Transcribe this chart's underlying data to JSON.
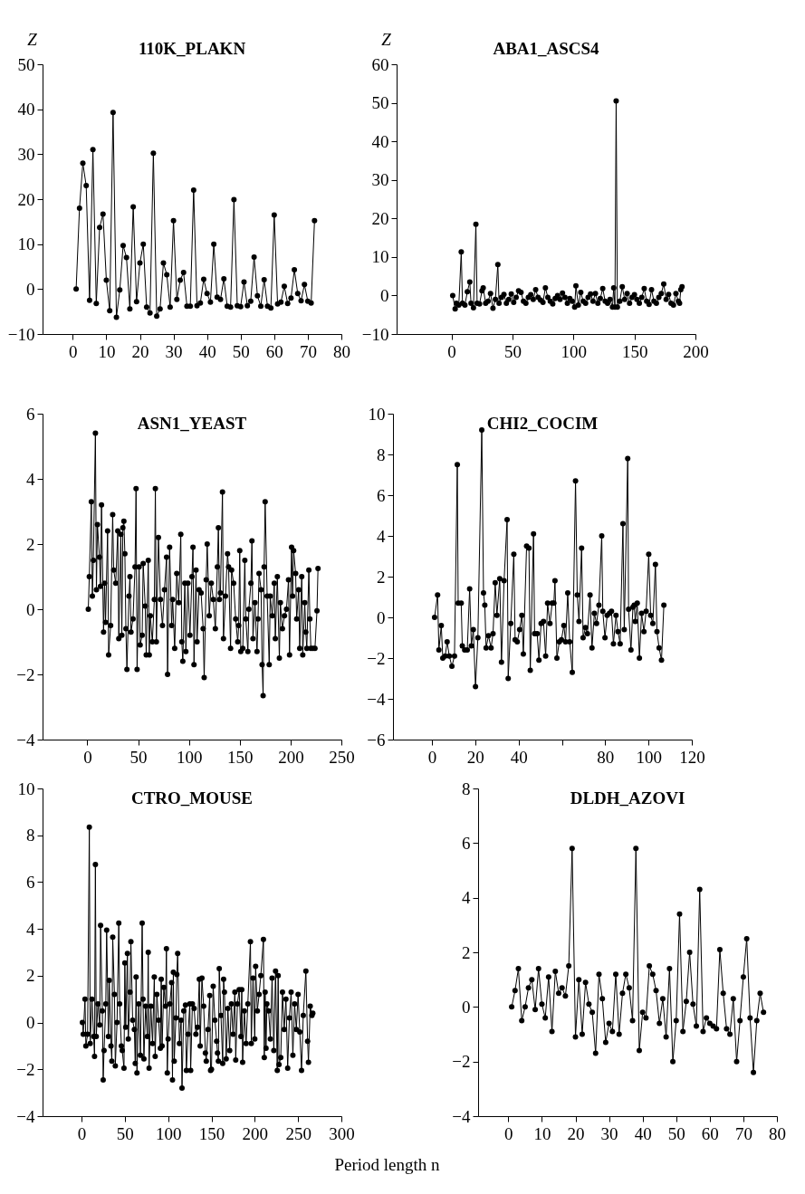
{
  "chart_data": [
    {
      "type": "line",
      "title": "110K_PLAKN",
      "ylabel": "Z",
      "marker": "circle",
      "xlim": [
        -9,
        80
      ],
      "ylim": [
        -10,
        50
      ],
      "xticks": [
        0,
        10,
        20,
        30,
        40,
        50,
        60,
        70,
        80
      ],
      "yticks": [
        -10,
        0,
        10,
        20,
        30,
        40,
        50
      ],
      "x": [
        1,
        2,
        3,
        4,
        5,
        6,
        7,
        8,
        9,
        10,
        11,
        12,
        13,
        14,
        15,
        16,
        17,
        18,
        19,
        20,
        21,
        22,
        23,
        24,
        25,
        26,
        27,
        28,
        29,
        30,
        31,
        32,
        33,
        34,
        35,
        36,
        37,
        38,
        39,
        40,
        41,
        42,
        43,
        44,
        45,
        46,
        47,
        48,
        49,
        50,
        51,
        52,
        53,
        54,
        55,
        56,
        57,
        58,
        59,
        60,
        61,
        62,
        63,
        64,
        65,
        66,
        67,
        68,
        69,
        70,
        71,
        72
      ],
      "series": [
        {
          "color": "#000000",
          "values": [
            0,
            18,
            28,
            23,
            -2.5,
            31,
            -3.2,
            13.7,
            16.7,
            2,
            -4.8,
            39.3,
            -6.3,
            -0.2,
            9.7,
            7,
            -4.4,
            18.3,
            -2.8,
            5.8,
            10,
            -4,
            -5.3,
            30.2,
            -6,
            -4.4,
            5.8,
            3.2,
            -4,
            15.2,
            -2.3,
            2,
            3.7,
            -3.8,
            -3.8,
            22,
            -3.7,
            -3.1,
            2.2,
            -1,
            -2.9,
            10,
            -1.8,
            -2.3,
            2.3,
            -3.8,
            -4,
            19.9,
            -3.7,
            -3.9,
            1.6,
            -3.7,
            -2.7,
            7.1,
            -1.5,
            -3.8,
            2.1,
            -3.8,
            -4.2,
            16.5,
            -3.3,
            -2.9,
            0.6,
            -3.2,
            -2,
            4.3,
            -1,
            -2.6,
            1,
            -2.7,
            -3.1,
            15.2
          ]
        }
      ]
    },
    {
      "type": "line",
      "title": "ABA1_ASCS4",
      "ylabel": "Z",
      "marker": "circle",
      "xlim": [
        -45,
        200
      ],
      "ylim": [
        -10,
        60
      ],
      "xticks": [
        0,
        50,
        100,
        150,
        200
      ],
      "yticks": [
        -10,
        0,
        10,
        20,
        30,
        40,
        50,
        60
      ],
      "x": [
        1,
        3,
        4,
        6,
        8,
        9,
        11,
        13,
        15,
        16,
        18,
        20,
        21,
        23,
        25,
        26,
        28,
        30,
        32,
        34,
        36,
        38,
        39,
        41,
        43,
        45,
        47,
        49,
        51,
        53,
        55,
        57,
        59,
        61,
        63,
        65,
        67,
        69,
        71,
        73,
        75,
        77,
        79,
        81,
        83,
        85,
        87,
        89,
        91,
        93,
        95,
        97,
        99,
        101,
        102,
        104,
        106,
        108,
        110,
        112,
        114,
        116,
        118,
        120,
        122,
        124,
        126,
        128,
        130,
        132,
        133,
        134,
        135,
        136,
        138,
        140,
        142,
        144,
        146,
        148,
        150,
        152,
        154,
        156,
        158,
        160,
        162,
        164,
        166,
        168,
        170,
        172,
        174,
        176,
        178,
        180,
        182,
        184,
        186,
        187,
        188,
        189
      ],
      "series": [
        {
          "color": "#000000",
          "values": [
            0,
            -3.5,
            -2,
            -2.5,
            11.3,
            -2,
            -2.5,
            1,
            3.5,
            -2,
            -3.2,
            18.5,
            -2,
            -2.2,
            1.2,
            2,
            -2,
            -1.5,
            0.5,
            -3.3,
            -1,
            8,
            -2,
            -0.5,
            0.3,
            -2,
            -1,
            0.4,
            -1.8,
            -0.5,
            1.2,
            0.8,
            -1.5,
            -2,
            -0.5,
            0.2,
            -1,
            1.5,
            -0.5,
            -1.2,
            -1.8,
            2,
            -0.5,
            -1.5,
            -2.2,
            -0.8,
            0,
            -1,
            0.6,
            -0.5,
            -2,
            -0.8,
            -1.5,
            -3,
            2.5,
            -2.5,
            0.8,
            -1.5,
            -2,
            -0.5,
            0.4,
            -1.5,
            0.5,
            -2,
            -0.8,
            1.8,
            -1.5,
            -2,
            -1,
            -3,
            2,
            -3,
            50.5,
            -3,
            -1.5,
            2.3,
            -1,
            0.5,
            -2,
            -0.5,
            0.2,
            -1,
            -2,
            -0.5,
            1.8,
            -1.5,
            -2.3,
            1.5,
            -1.5,
            -2,
            -0.5,
            0.5,
            3,
            -1,
            0.3,
            -2,
            -2.5,
            0.5,
            -1.5,
            -2,
            1.5,
            2.3
          ]
        }
      ]
    },
    {
      "type": "line",
      "title": "ASN1_YEAST",
      "marker": "circle",
      "xlim": [
        -44,
        250
      ],
      "ylim": [
        -4,
        6
      ],
      "xticks": [
        0,
        50,
        100,
        150,
        200,
        250
      ],
      "yticks": [
        -4,
        -2,
        0,
        2,
        4,
        6
      ],
      "x": [
        1,
        2,
        4,
        5,
        6,
        8,
        9,
        10,
        12,
        13,
        14,
        16,
        17,
        18,
        20,
        21,
        23,
        25,
        26,
        28,
        30,
        31,
        33,
        34,
        35,
        36,
        37,
        38,
        39,
        41,
        42,
        43,
        45,
        47,
        48,
        49,
        51,
        52,
        54,
        55,
        57,
        58,
        60,
        61,
        62,
        64,
        66,
        67,
        68,
        70,
        72,
        74,
        76,
        78,
        79,
        81,
        83,
        84,
        86,
        88,
        90,
        92,
        93,
        94,
        96,
        97,
        99,
        101,
        103,
        104,
        105,
        107,
        108,
        110,
        112,
        114,
        115,
        117,
        118,
        120,
        122,
        124,
        126,
        128,
        129,
        130,
        131,
        133,
        134,
        136,
        138,
        139,
        141,
        142,
        144,
        146,
        148,
        149,
        150,
        151,
        153,
        155,
        156,
        158,
        159,
        161,
        162,
        163,
        165,
        167,
        168,
        169,
        171,
        172,
        173,
        174,
        175,
        177,
        179,
        180,
        182,
        184,
        185,
        187,
        189,
        190,
        192,
        194,
        196,
        198,
        199,
        201,
        202,
        203,
        205,
        206,
        208,
        209,
        211,
        212,
        214,
        215,
        216,
        218,
        219,
        220,
        222,
        224,
        226,
        227
      ],
      "series": [
        {
          "color": "#000000",
          "values": [
            0,
            1,
            3.3,
            0.4,
            1.5,
            5.4,
            0.6,
            2.6,
            1.6,
            0.7,
            3.2,
            -0.7,
            0.8,
            -0.4,
            2.4,
            -1.4,
            -0.5,
            2.9,
            1.2,
            0.8,
            2.4,
            -0.9,
            2.3,
            -0.8,
            2.5,
            2.7,
            1.7,
            -0.6,
            -1.85,
            0.4,
            1,
            -0.7,
            -0.3,
            1.3,
            3.7,
            -1.85,
            1.3,
            -1.1,
            -0.8,
            1.4,
            0.1,
            -1.4,
            1.5,
            -1.4,
            -0.2,
            -1,
            0.3,
            3.7,
            -1,
            2.2,
            0.3,
            -0.5,
            0.6,
            1.6,
            -2,
            1.9,
            -0.5,
            0.3,
            -1.2,
            1.1,
            0.2,
            2.3,
            -1,
            -1.6,
            0.8,
            -1.3,
            0.8,
            -0.8,
            1,
            1.9,
            -1.7,
            1.2,
            -1,
            0.6,
            0.5,
            -0.6,
            -2.1,
            0.9,
            2,
            -0.2,
            0.8,
            0.3,
            -0.6,
            1.3,
            2.5,
            0.3,
            0.5,
            3.6,
            -0.9,
            0.4,
            1.7,
            1.3,
            -1.2,
            1.2,
            0.8,
            -0.3,
            -1,
            -0.5,
            1.8,
            -1.3,
            -1.2,
            1.5,
            -0.3,
            -1.3,
            0,
            0.8,
            2.1,
            -0.9,
            0.2,
            -1.3,
            -0.3,
            1.1,
            0.6,
            -1.7,
            -2.65,
            1.3,
            3.3,
            0.4,
            -1.7,
            0.4,
            -0.2,
            0.8,
            -0.9,
            1,
            -1.5,
            0.2,
            -0.6,
            -0.2,
            0,
            0.9,
            -1.4,
            1.9,
            0.4,
            1.8,
            1.1,
            -0.3,
            0.6,
            -1.2,
            1,
            -1.4,
            0.2,
            -0.7,
            -1.2,
            1.2,
            -0.3,
            -1.2,
            -1.2,
            -1.2,
            -0.05,
            1.25
          ]
        }
      ]
    },
    {
      "type": "line",
      "title": "CHI2_COCIM",
      "marker": "circle",
      "xlim": [
        -18,
        120
      ],
      "ylim": [
        -6,
        10
      ],
      "xticks": [
        0,
        20,
        40,
        {
          "value": 60,
          "label": null
        },
        80,
        100,
        120
      ],
      "yticks": [
        -6,
        -4,
        -2,
        0,
        2,
        4,
        6,
        8,
        10
      ],
      "x": [
        1.2,
        2.6,
        3.2,
        4.3,
        5,
        6.1,
        7,
        8,
        9.2,
        10.4,
        11.7,
        12.1,
        13.5,
        14,
        15.1,
        16.3,
        17.4,
        18.2,
        19.1,
        20.1,
        21.2,
        23,
        23.8,
        24.4,
        25,
        26.1,
        27.3,
        28.2,
        29.2,
        30,
        31.3,
        32.1,
        33.3,
        34.7,
        35.2,
        36.4,
        37.8,
        38.4,
        39.4,
        40.5,
        41.5,
        42.2,
        43.7,
        44.8,
        45.4,
        46.9,
        47.4,
        48.6,
        49.4,
        50.4,
        51.5,
        52.5,
        53.4,
        54.5,
        55.5,
        56.3,
        56.8,
        57.7,
        58.8,
        59.8,
        60.9,
        61.7,
        62.7,
        63.6,
        64.8,
        66.3,
        67.1,
        67.9,
        69.1,
        69.8,
        70.9,
        71.8,
        73,
        73.9,
        75,
        76,
        77.1,
        78.4,
        78.9,
        79.9,
        80.9,
        82,
        82.9,
        83.8,
        85,
        85.9,
        86.9,
        88.2,
        88.8,
        90.4,
        90.8,
        91.9,
        92.8,
        93.4,
        93.9,
        94.8,
        95.8,
        96.8,
        97.9,
        98.9,
        100.1,
        101,
        102,
        103.2,
        103.9,
        104.9,
        106,
        107.1
      ],
      "series": [
        {
          "color": "#000000",
          "values": [
            0,
            1.1,
            -1.6,
            -0.4,
            -2,
            -1.9,
            -1.2,
            -1.9,
            -2.4,
            -1.9,
            7.5,
            0.7,
            0.7,
            -1.4,
            -1.6,
            -1.6,
            1.4,
            -1.4,
            -0.6,
            -3.4,
            -1,
            9.2,
            1.2,
            0.6,
            -1.5,
            -0.9,
            -1.5,
            -0.8,
            1.7,
            0.1,
            1.9,
            -2.2,
            1.8,
            4.8,
            -3,
            -0.3,
            3.1,
            -1.1,
            -1.2,
            -0.6,
            0.1,
            -1.8,
            3.5,
            3.4,
            -2.6,
            4.1,
            -0.8,
            -0.8,
            -2.1,
            -0.3,
            -0.2,
            -1.9,
            0.7,
            -0.3,
            0.7,
            0.7,
            1.8,
            -2,
            -1.2,
            -1.1,
            -0.4,
            -1.2,
            1.2,
            -1.2,
            -2.7,
            6.7,
            1.1,
            -0.2,
            3.4,
            -1,
            -0.5,
            -0.8,
            1.1,
            -1.5,
            0.2,
            -0.3,
            0.6,
            4,
            0.3,
            -1,
            0.1,
            0.2,
            0.3,
            -1.3,
            0.1,
            -0.7,
            -1.3,
            4.6,
            -0.6,
            7.8,
            0.4,
            -1.6,
            0.5,
            0.6,
            -0.2,
            0.7,
            -2,
            0.2,
            -0.7,
            0.3,
            3.1,
            0.1,
            -0.3,
            2.6,
            -0.7,
            -1.5,
            -2.1,
            0.6
          ]
        }
      ]
    },
    {
      "type": "line",
      "title": "CTRO_MOUSE",
      "xlabel": "Period length n",
      "marker": "circle",
      "xlim": [
        -45,
        300
      ],
      "ylim": [
        -4,
        10
      ],
      "xticks": [
        0,
        50,
        100,
        150,
        200,
        250,
        300
      ],
      "yticks": [
        -4,
        -2,
        0,
        2,
        4,
        6,
        8,
        10
      ],
      "x": [
        1,
        2,
        4,
        5,
        7,
        9,
        10,
        12,
        14,
        15,
        16,
        17,
        19,
        21,
        22,
        24,
        25,
        26,
        28,
        29,
        31,
        32,
        34,
        35,
        36,
        38,
        39,
        41,
        43,
        44,
        46,
        47,
        49,
        50,
        51,
        53,
        54,
        56,
        57,
        59,
        61,
        62,
        63,
        64,
        66,
        68,
        70,
        71,
        72,
        74,
        76,
        77,
        78,
        80,
        82,
        84,
        85,
        87,
        89,
        91,
        92,
        93,
        95,
        97,
        98,
        99,
        100,
        102,
        104,
        105,
        106,
        107,
        109,
        110,
        111,
        113,
        115,
        116,
        118,
        120,
        121,
        123,
        125,
        126,
        128,
        130,
        132,
        134,
        136,
        137,
        139,
        141,
        143,
        144,
        146,
        148,
        149,
        150,
        152,
        154,
        156,
        157,
        158,
        159,
        161,
        163,
        164,
        165,
        167,
        169,
        171,
        173,
        175,
        177,
        178,
        180,
        182,
        184,
        185,
        186,
        188,
        190,
        192,
        195,
        196,
        198,
        200,
        201,
        203,
        205,
        207,
        210,
        211,
        212,
        213,
        214,
        216,
        218,
        220,
        222,
        224,
        226,
        227,
        228,
        230,
        232,
        234,
        236,
        238,
        240,
        242,
        244,
        246,
        248,
        250,
        252,
        254,
        256,
        259,
        261,
        262,
        264,
        266,
        267
      ],
      "series": [
        {
          "color": "#000000",
          "values": [
            0,
            -0.5,
            1,
            -1,
            -0.5,
            8.35,
            -0.9,
            1,
            -0.6,
            -1.45,
            6.75,
            -0.6,
            0.8,
            -0.1,
            4.15,
            0.5,
            -2.45,
            -1.2,
            0.8,
            3.95,
            -0.6,
            1.8,
            -1,
            -1.65,
            3.65,
            1.2,
            -1.85,
            0,
            4.25,
            0.8,
            -1,
            -1.2,
            -1.95,
            2.55,
            -0.2,
            2.95,
            -0.7,
            1.3,
            3.45,
            0.1,
            -0.3,
            -1.75,
            1.95,
            -2.15,
            0.8,
            -1.4,
            4.25,
            1,
            -1.55,
            0.7,
            -0.6,
            3,
            -1.95,
            0.7,
            -0.9,
            1.95,
            -1.45,
            1.2,
            0.1,
            -1.1,
            1.85,
            -1,
            1.5,
            0.7,
            3.15,
            -2.15,
            -0.7,
            0.8,
            1.7,
            -2.45,
            2.15,
            -1.65,
            0.2,
            2.05,
            2.95,
            -0.9,
            0.1,
            -2.8,
            0.5,
            0.75,
            -2.05,
            -0.5,
            0.8,
            -2.05,
            0.8,
            0.6,
            -0.5,
            -0.2,
            1.85,
            -1,
            1.9,
            0.7,
            -1.3,
            -1.65,
            -0.3,
            1.15,
            -2.05,
            -2,
            1.55,
            0.1,
            -0.8,
            -1.3,
            -1.65,
            2.3,
            0.3,
            -1.75,
            1.85,
            1.3,
            -1.55,
            0.6,
            -1.2,
            0.8,
            -0.5,
            1.3,
            -1.6,
            0.8,
            1.4,
            -0.6,
            1.4,
            -1.7,
            0.5,
            -0.9,
            0.8,
            3.45,
            -0.9,
            1.9,
            -0.7,
            2.4,
            0.5,
            1.2,
            2,
            3.55,
            -1.5,
            1.3,
            -1.1,
            0.8,
            0.5,
            -0.7,
            1.9,
            -1.2,
            2.2,
            -2.05,
            2,
            -1.8,
            -1.5,
            1.3,
            -0.3,
            1,
            -1.95,
            0.2,
            1.3,
            -1.4,
            0.8,
            -0.3,
            1.2,
            -0.4,
            -2.05,
            0.3,
            2.2,
            -0.8,
            -1.7,
            0.7,
            0.3,
            0.4
          ]
        }
      ]
    },
    {
      "type": "line",
      "title": "DLDH_AZOVI",
      "marker": "circle",
      "xlim": [
        -9,
        80
      ],
      "ylim": [
        -4,
        8
      ],
      "xticks": [
        0,
        10,
        20,
        30,
        40,
        50,
        60,
        70,
        80
      ],
      "yticks": [
        -4,
        -2,
        0,
        2,
        4,
        6,
        8
      ],
      "x": [
        1,
        2,
        3,
        4,
        5,
        6,
        7,
        8,
        9,
        10,
        11,
        12,
        13,
        14,
        15,
        16,
        17,
        18,
        19,
        20,
        21,
        22,
        23,
        24,
        25,
        26,
        27,
        28,
        29,
        30,
        31,
        32,
        33,
        34,
        35,
        36,
        37,
        38,
        39,
        40,
        41,
        42,
        43,
        44,
        45,
        46,
        47,
        48,
        49,
        50,
        51,
        52,
        53,
        54,
        55,
        56,
        57,
        58,
        59,
        60,
        61,
        62,
        63,
        64,
        65,
        66,
        67,
        68,
        69,
        70,
        71,
        72,
        73,
        74,
        75,
        76
      ],
      "series": [
        {
          "color": "#000000",
          "values": [
            0,
            0.6,
            1.4,
            -0.5,
            0,
            0.7,
            1,
            -0.1,
            1.4,
            0.1,
            -0.4,
            1.1,
            -0.9,
            1.3,
            0.5,
            0.7,
            0.4,
            1.5,
            5.8,
            -1.1,
            1,
            -1,
            0.9,
            0.1,
            -0.2,
            -1.7,
            1.2,
            0.3,
            -1.3,
            -0.6,
            -0.9,
            1.2,
            -1,
            0.5,
            1.2,
            0.7,
            -0.5,
            5.8,
            -1.6,
            -0.2,
            -0.4,
            1.5,
            1.2,
            0.6,
            -0.6,
            0.3,
            -1.1,
            1.4,
            -2,
            -0.5,
            3.4,
            -0.9,
            0.2,
            2,
            0.1,
            -0.7,
            4.3,
            -0.9,
            -0.4,
            -0.6,
            -0.7,
            -0.8,
            2.1,
            0.5,
            -0.8,
            -1,
            0.3,
            -2,
            -0.5,
            1.1,
            2.5,
            -0.4,
            -2.4,
            -0.5,
            0.5,
            -0.2
          ]
        }
      ]
    }
  ]
}
